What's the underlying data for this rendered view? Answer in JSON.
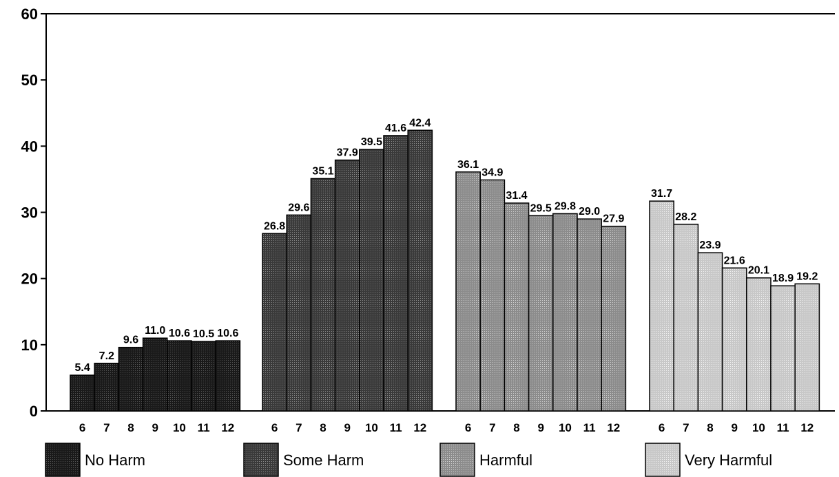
{
  "chart_data": {
    "type": "bar",
    "title": "",
    "xlabel": "",
    "ylabel": "",
    "ylim": [
      0,
      60
    ],
    "yticks": [
      0,
      10,
      20,
      30,
      40,
      50,
      60
    ],
    "grid": false,
    "legend_position": "bottom",
    "categories": [
      "6",
      "7",
      "8",
      "9",
      "10",
      "11",
      "12"
    ],
    "series": [
      {
        "name": "No Harm",
        "color": "#2b2b2b",
        "values": [
          5.4,
          7.2,
          9.6,
          11.0,
          10.6,
          10.5,
          10.6
        ],
        "labels": [
          "5.4",
          "7.2",
          "9.6",
          "11.0",
          "10.6",
          "10.5",
          "10.6"
        ]
      },
      {
        "name": "Some Harm",
        "color": "#555555",
        "values": [
          26.8,
          29.6,
          35.1,
          37.9,
          39.5,
          41.6,
          42.4
        ],
        "labels": [
          "26.8",
          "29.6",
          "35.1",
          "37.9",
          "39.5",
          "41.6",
          "42.4"
        ]
      },
      {
        "name": "Harmful",
        "color": "#9a9a9a",
        "values": [
          36.1,
          34.9,
          31.4,
          29.5,
          29.8,
          29.0,
          27.9
        ],
        "labels": [
          "36.1",
          "34.9",
          "31.4",
          "29.5",
          "29.8",
          "29.0",
          "27.9"
        ]
      },
      {
        "name": "Very Harmful",
        "color": "#d2d2d2",
        "values": [
          31.7,
          28.2,
          23.9,
          21.6,
          20.1,
          18.9,
          19.2
        ],
        "labels": [
          "31.7",
          "28.2",
          "23.9",
          "21.6",
          "20.1",
          "18.9",
          "19.2"
        ]
      }
    ]
  }
}
